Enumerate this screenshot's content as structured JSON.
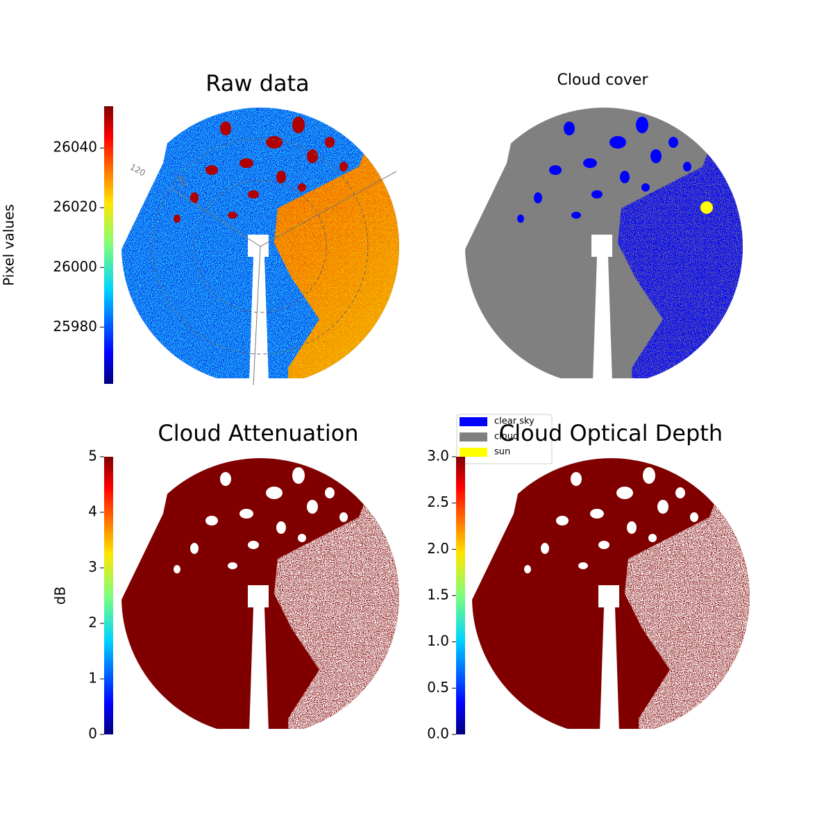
{
  "chart_data": [
    {
      "type": "image",
      "title": "Raw data",
      "ylabel": "Pixel values",
      "colormap": "jet",
      "ylim": [
        25961,
        26054
      ],
      "yticks": [
        25980,
        26000,
        26020,
        26040
      ],
      "annotations": [
        "120",
        "60"
      ]
    },
    {
      "type": "image",
      "title": "Cloud cover",
      "legend": "lower left",
      "series": [
        {
          "name": "clear sky",
          "color": "#0000ff"
        },
        {
          "name": "cloud",
          "color": "#808080"
        },
        {
          "name": "sun",
          "color": "#ffff00"
        }
      ]
    },
    {
      "type": "image",
      "title": "Cloud Attenuation",
      "ylabel": "dB",
      "colormap": "jet",
      "ylim": [
        0,
        5
      ],
      "yticks": [
        0,
        1,
        2,
        3,
        4,
        5
      ]
    },
    {
      "type": "image",
      "title": "Cloud Optical Depth",
      "colormap": "jet",
      "ylim": [
        0,
        3
      ],
      "yticks": [
        {
          "value": 0,
          "label": "0.0"
        },
        0.5,
        {
          "value": 1,
          "label": "1.0"
        },
        1.5,
        {
          "value": 2,
          "label": "2.0"
        },
        2.5,
        {
          "value": 3,
          "label": "3.0"
        }
      ]
    }
  ]
}
